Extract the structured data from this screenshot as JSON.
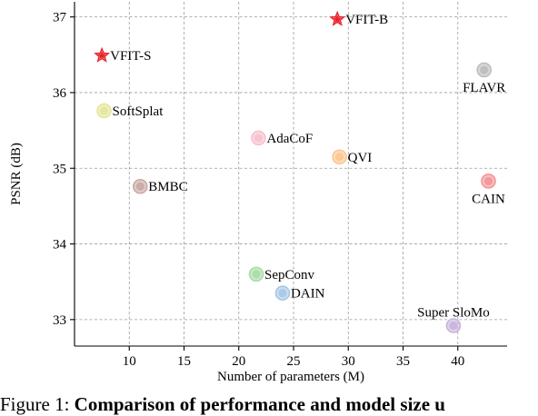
{
  "chart_data": {
    "type": "scatter",
    "xlabel": "Number of parameters (M)",
    "ylabel": "PSNR (dB)",
    "xlim": [
      5,
      44.5
    ],
    "ylim": [
      32.65,
      37.2
    ],
    "xticks": [
      10,
      15,
      20,
      25,
      30,
      35,
      40
    ],
    "yticks": [
      33,
      34,
      35,
      36,
      37
    ],
    "grid": true,
    "points": [
      {
        "label": "VFIT-B",
        "x": 29.0,
        "y": 36.97,
        "marker": "star",
        "color": "#e8202a",
        "label_pos": "right"
      },
      {
        "label": "VFIT-S",
        "x": 7.5,
        "y": 36.49,
        "marker": "star",
        "color": "#e8202a",
        "label_pos": "right"
      },
      {
        "label": "FLAVR",
        "x": 42.4,
        "y": 36.3,
        "marker": "circle",
        "color": "#bdbdbd",
        "label_pos": "below"
      },
      {
        "label": "SoftSplat",
        "x": 7.7,
        "y": 35.76,
        "marker": "circle",
        "color": "#e4e69a",
        "label_pos": "right"
      },
      {
        "label": "AdaCoF",
        "x": 21.8,
        "y": 35.4,
        "marker": "circle",
        "color": "#f7c0cf",
        "label_pos": "right"
      },
      {
        "label": "QVI",
        "x": 29.2,
        "y": 35.15,
        "marker": "circle",
        "color": "#fcc58f",
        "label_pos": "right"
      },
      {
        "label": "CAIN",
        "x": 42.8,
        "y": 34.83,
        "marker": "circle",
        "color": "#f29595",
        "label_pos": "below"
      },
      {
        "label": "BMBC",
        "x": 11.0,
        "y": 34.76,
        "marker": "circle",
        "color": "#c8aaa4",
        "label_pos": "right"
      },
      {
        "label": "SepConv",
        "x": 21.6,
        "y": 33.6,
        "marker": "circle",
        "color": "#a8dca6",
        "label_pos": "right"
      },
      {
        "label": "DAIN",
        "x": 24.0,
        "y": 33.35,
        "marker": "circle",
        "color": "#a6c8e6",
        "label_pos": "right"
      },
      {
        "label": "Super SloMo",
        "x": 39.6,
        "y": 32.92,
        "marker": "circle",
        "color": "#c9b4dc",
        "label_pos": "above"
      }
    ]
  },
  "caption": {
    "prefix": "Figure 1: ",
    "bold": "Comparison of performance and model size u"
  }
}
